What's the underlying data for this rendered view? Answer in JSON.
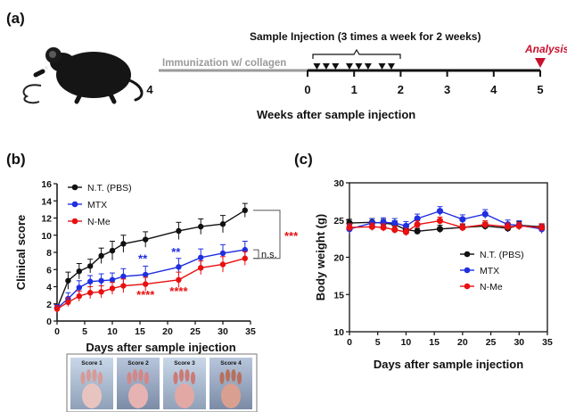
{
  "panels": {
    "a": "(a)",
    "b": "(b)",
    "c": "(c)"
  },
  "timeline": {
    "immunization_label": "Immunization w/ collagen",
    "injection_label": "Sample Injection (3 times a week for 2 weeks)",
    "analysis_label": "Analysis",
    "xlabel": "Weeks after sample injection",
    "ticks": [
      -4,
      0,
      1,
      2,
      3,
      4,
      5
    ],
    "tick_labels": [
      "- 4",
      "0",
      "1",
      "2",
      "3",
      "4",
      "5"
    ],
    "injection_weeks": [
      0.2,
      0.4,
      0.6,
      0.9,
      1.1,
      1.3,
      1.6,
      1.8
    ],
    "analysis_week": 5,
    "colors": {
      "immunization": "#9a9a9a",
      "axis": "#111111",
      "analysis": "#c8102e"
    }
  },
  "chart_data": [
    {
      "type": "line",
      "panel": "b",
      "xlabel": "Days after sample injection",
      "ylabel": "Clinical score",
      "xlim": [
        0,
        35
      ],
      "ylim": [
        0,
        16
      ],
      "xticks": [
        0,
        5,
        10,
        15,
        20,
        25,
        30,
        35
      ],
      "yticks": [
        0,
        2,
        4,
        6,
        8,
        10,
        12,
        14,
        16
      ],
      "legend": "top-left",
      "series": [
        {
          "name": "N.T. (PBS)",
          "color": "#111111",
          "x": [
            0,
            2,
            4,
            6,
            8,
            10,
            12,
            16,
            22,
            26,
            30,
            34
          ],
          "y": [
            1.5,
            4.7,
            5.8,
            6.4,
            7.6,
            8.2,
            9.0,
            9.5,
            10.5,
            11.0,
            11.3,
            12.9
          ],
          "err": [
            0.4,
            1.0,
            0.9,
            0.8,
            0.9,
            1.1,
            1.0,
            0.9,
            1.0,
            0.9,
            1.0,
            0.8
          ]
        },
        {
          "name": "MTX",
          "color": "#1f2fe0",
          "x": [
            0,
            2,
            4,
            6,
            8,
            10,
            12,
            16,
            22,
            26,
            30,
            34
          ],
          "y": [
            1.5,
            2.6,
            3.9,
            4.6,
            4.7,
            4.8,
            5.2,
            5.4,
            6.3,
            7.4,
            7.9,
            8.3
          ],
          "err": [
            0.4,
            0.7,
            0.8,
            0.7,
            0.8,
            0.8,
            0.9,
            1.0,
            1.0,
            1.0,
            1.0,
            1.0
          ]
        },
        {
          "name": "N-Me",
          "color": "#e81010",
          "x": [
            0,
            2,
            4,
            6,
            8,
            10,
            12,
            16,
            22,
            26,
            30,
            34
          ],
          "y": [
            1.4,
            2.2,
            2.9,
            3.3,
            3.4,
            3.8,
            4.1,
            4.3,
            4.8,
            6.2,
            6.6,
            7.3
          ],
          "err": [
            0.4,
            0.5,
            0.6,
            0.7,
            0.7,
            0.7,
            0.8,
            0.8,
            0.9,
            0.8,
            0.9,
            0.8
          ]
        }
      ],
      "annotations": [
        {
          "text": "**",
          "x": 15.5,
          "y": 6.8,
          "color": "#1f2fe0"
        },
        {
          "text": "**",
          "x": 21.5,
          "y": 7.6,
          "color": "#1f2fe0"
        },
        {
          "text": "****",
          "x": 16,
          "y": 2.6,
          "color": "#e81010"
        },
        {
          "text": "****",
          "x": 22,
          "y": 3.0,
          "color": "#e81010"
        },
        {
          "text": "n.s.",
          "color": "#111111"
        },
        {
          "text": "***",
          "color": "#e81010"
        }
      ],
      "brackets": [
        {
          "from": "N.T. (PBS)",
          "to": "N-Me",
          "label": "***"
        },
        {
          "from": "MTX",
          "to": "N-Me",
          "label": "n.s."
        }
      ]
    },
    {
      "type": "line",
      "panel": "c",
      "xlabel": "Days after sample injection",
      "ylabel": "Body weight  (g)",
      "xlim": [
        0,
        35
      ],
      "ylim": [
        10,
        30
      ],
      "xticks": [
        0,
        5,
        10,
        15,
        20,
        25,
        30,
        35
      ],
      "yticks": [
        10,
        15,
        20,
        25,
        30
      ],
      "legend": "right",
      "series": [
        {
          "name": "N.T. (PBS)",
          "color": "#111111",
          "x": [
            0,
            4,
            6,
            8,
            10,
            12,
            16,
            20,
            24,
            28,
            30,
            34
          ],
          "y": [
            24.6,
            24.7,
            24.6,
            24.4,
            23.7,
            23.5,
            23.8,
            24.0,
            24.2,
            23.9,
            24.3,
            24.1
          ],
          "err": [
            0.5,
            0.5,
            0.5,
            0.5,
            0.5,
            0.4,
            0.5,
            0.4,
            0.5,
            0.5,
            0.5,
            0.4
          ]
        },
        {
          "name": "MTX",
          "color": "#1f2fe0",
          "x": [
            0,
            4,
            6,
            8,
            10,
            12,
            16,
            20,
            24,
            28,
            30,
            34
          ],
          "y": [
            23.8,
            24.6,
            24.7,
            24.6,
            24.2,
            25.2,
            26.2,
            25.1,
            25.8,
            24.4,
            24.3,
            23.8
          ],
          "err": [
            0.6,
            0.6,
            0.6,
            0.6,
            0.6,
            0.6,
            0.6,
            0.6,
            0.6,
            0.6,
            0.6,
            0.6
          ]
        },
        {
          "name": "N-Me",
          "color": "#e81010",
          "x": [
            0,
            4,
            6,
            8,
            10,
            12,
            16,
            20,
            24,
            28,
            30,
            34
          ],
          "y": [
            24.0,
            24.1,
            24.0,
            23.7,
            23.4,
            24.4,
            24.9,
            24.0,
            24.4,
            24.1,
            24.2,
            24.0
          ],
          "err": [
            0.5,
            0.5,
            0.5,
            0.5,
            0.5,
            0.5,
            0.5,
            0.5,
            0.5,
            0.5,
            0.5,
            0.5
          ]
        }
      ]
    }
  ],
  "score_strip": {
    "labels": [
      "Score 1",
      "Score 2",
      "Score 3",
      "Score 4"
    ]
  }
}
